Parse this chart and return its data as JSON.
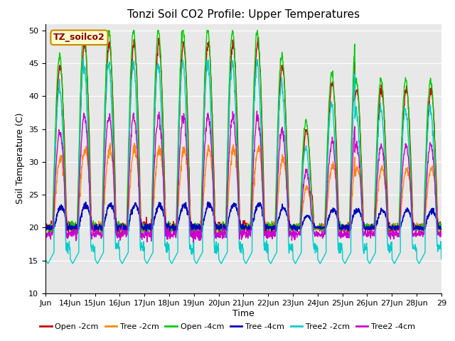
{
  "title": "Tonzi Soil CO2 Profile: Upper Temperatures",
  "xlabel": "Time",
  "ylabel": "Soil Temperature (C)",
  "ylim": [
    10,
    51
  ],
  "yticks": [
    10,
    15,
    20,
    25,
    30,
    35,
    40,
    45,
    50
  ],
  "xtick_labels": [
    "Jun 14",
    "Jun 15",
    "Jun 16",
    "Jun 17",
    "Jun 18",
    "Jun 19",
    "Jun 20",
    "Jun 21",
    "Jun 22",
    "Jun 23",
    "Jun 24",
    "Jun 25",
    "Jun 26",
    "Jun 27",
    "Jun 28",
    "Jun 29"
  ],
  "legend_labels": [
    "Open -2cm",
    "Tree -2cm",
    "Open -4cm",
    "Tree -4cm",
    "Tree2 -2cm",
    "Tree2 -4cm"
  ],
  "legend_colors": [
    "#cc0000",
    "#ff8800",
    "#00cc00",
    "#0000bb",
    "#00cccc",
    "#cc00cc"
  ],
  "background_color": "#e8e8e8",
  "annotation_text": "TZ_soilco2",
  "annotation_bg": "#ffffcc",
  "annotation_border": "#cc8800",
  "annotation_text_color": "#880000",
  "title_fontsize": 11,
  "axis_label_fontsize": 9,
  "tick_fontsize": 8,
  "legend_fontsize": 8
}
